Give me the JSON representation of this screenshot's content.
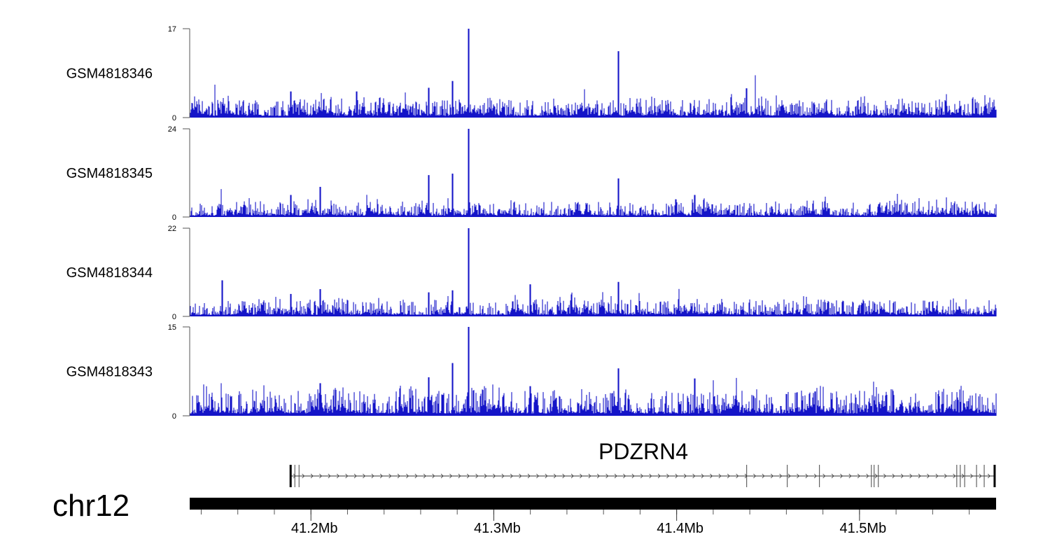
{
  "chart_data": {
    "type": "bar",
    "title": "",
    "xlabel": "",
    "x_units": "Mb",
    "xlim": [
      41.1337,
      41.5747
    ],
    "x_ticks": [
      {
        "value": 41.2,
        "label": "41.2Mb"
      },
      {
        "value": 41.3,
        "label": "41.3Mb"
      },
      {
        "value": 41.4,
        "label": "41.4Mb"
      },
      {
        "value": 41.5,
        "label": "41.5Mb"
      }
    ],
    "minor_tick_step": 0.02,
    "chromosome": "chr12",
    "color": "#1414c8",
    "background_noise_seed": 7,
    "series": [
      {
        "name": "GSM4818346",
        "ylim": [
          0,
          17
        ],
        "y_tick_labels": [
          "0",
          "17"
        ],
        "noise_level": 1.3,
        "peaks": [
          [
            41.2862,
            17
          ],
          [
            41.3682,
            12.7
          ],
          [
            41.443,
            8.1
          ],
          [
            41.4383,
            5.6
          ],
          [
            41.2645,
            5.7
          ],
          [
            41.2775,
            7.0
          ],
          [
            41.1475,
            6.3
          ],
          [
            41.189,
            5.0
          ],
          [
            41.225,
            5.0
          ]
        ]
      },
      {
        "name": "GSM4818345",
        "ylim": [
          0,
          24
        ],
        "y_tick_labels": [
          "0",
          "24"
        ],
        "noise_level": 1.6,
        "peaks": [
          [
            41.2862,
            24
          ],
          [
            41.2775,
            11.8
          ],
          [
            41.2645,
            11.4
          ],
          [
            41.3682,
            10.5
          ],
          [
            41.205,
            8.2
          ],
          [
            41.151,
            7.6
          ],
          [
            41.189,
            6.0
          ],
          [
            41.41,
            6.0
          ]
        ]
      },
      {
        "name": "GSM4818344",
        "ylim": [
          0,
          22
        ],
        "y_tick_labels": [
          "0",
          "22"
        ],
        "noise_level": 1.6,
        "peaks": [
          [
            41.2862,
            22
          ],
          [
            41.1515,
            9.0
          ],
          [
            41.3682,
            8.6
          ],
          [
            41.32,
            8.0
          ],
          [
            41.205,
            6.8
          ],
          [
            41.2645,
            6.0
          ],
          [
            41.2775,
            6.5
          ],
          [
            41.189,
            5.6
          ]
        ]
      },
      {
        "name": "GSM4818343",
        "ylim": [
          0,
          15
        ],
        "y_tick_labels": [
          "0",
          "15"
        ],
        "noise_level": 1.6,
        "peaks": [
          [
            41.2862,
            15
          ],
          [
            41.2775,
            8.9
          ],
          [
            41.3682,
            8.0
          ],
          [
            41.2645,
            6.5
          ],
          [
            41.41,
            6.3
          ],
          [
            41.42,
            6.0
          ],
          [
            41.205,
            5.5
          ],
          [
            41.32,
            5.0
          ],
          [
            41.151,
            5.5
          ]
        ]
      }
    ],
    "gene": {
      "name": "PDZRN4",
      "strand": "+",
      "start": 41.1889,
      "end": 41.5739,
      "exons": [
        41.1889,
        41.1912,
        41.1935,
        41.4383,
        41.4605,
        41.4781,
        41.5065,
        41.508,
        41.5103,
        41.5532,
        41.5551,
        41.5575,
        41.564,
        41.5682,
        41.5739
      ]
    }
  }
}
